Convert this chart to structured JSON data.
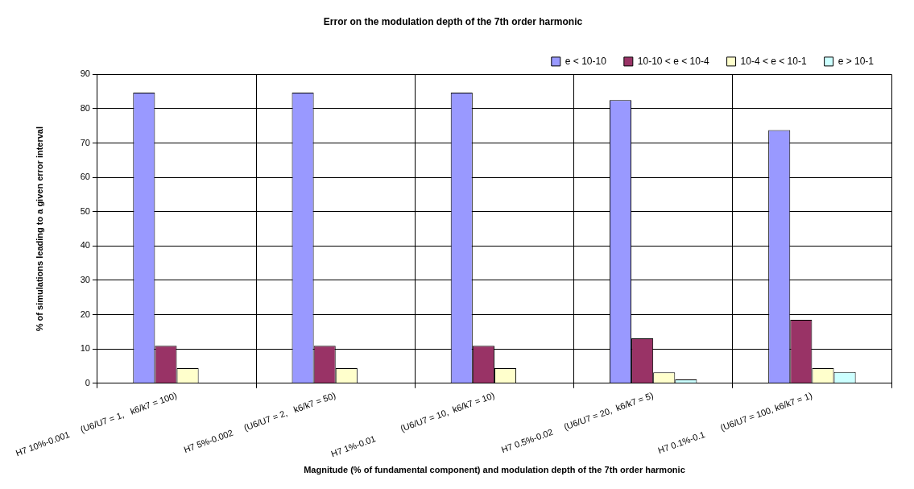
{
  "chart_data": {
    "type": "bar",
    "title": "Error on the modulation depth of the 7th order harmonic",
    "xlabel": "Magnitude (% of fundamental component) and modulation depth of the 7th order harmonic",
    "ylabel": "% of simulations leading to a given error interval",
    "categories": [
      "H7 10%-0.001     (U6/U7 = 1,   k6/k7 = 100)",
      "H7 5%-0.002     (U6/U7 = 2,   k6/k7 = 50)",
      "H7 1%-0.01           (U6/U7 = 10,  k6/k7 = 10)",
      "H7 0.5%-0.02     (U6/U7 = 20,  k6/k7 = 5)",
      "H7 0.1%-0.1       (U6/U7 = 100, k6/k7 = 1)"
    ],
    "series": [
      {
        "name": "e < 10-10",
        "color": "#9999ff",
        "values": [
          84.7,
          84.7,
          84.7,
          82.5,
          73.8
        ]
      },
      {
        "name": "10-10 < e < 10-4",
        "color": "#993366",
        "values": [
          10.9,
          10.9,
          10.9,
          13.1,
          18.5
        ]
      },
      {
        "name": "10-4 < e < 10-1",
        "color": "#ffffcc",
        "values": [
          4.4,
          4.4,
          4.4,
          3.2,
          4.4
        ]
      },
      {
        "name": "e > 10-1",
        "color": "#ccffff",
        "values": [
          0,
          0,
          0,
          1.1,
          3.3
        ]
      }
    ],
    "ylim": [
      0,
      90
    ],
    "yticks": [
      0,
      10,
      20,
      30,
      40,
      50,
      60,
      70,
      80,
      90
    ],
    "grid": true,
    "legend": "top right"
  }
}
